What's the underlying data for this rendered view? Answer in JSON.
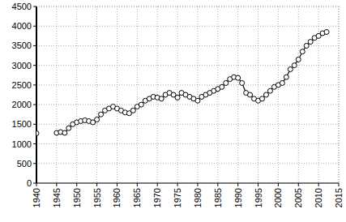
{
  "chart_data": {
    "type": "line",
    "color": "#000000",
    "marker": "circle",
    "grid": true,
    "x": [
      1940,
      1941,
      1942,
      1943,
      1944,
      1945,
      1946,
      1947,
      1948,
      1949,
      1950,
      1951,
      1952,
      1953,
      1954,
      1955,
      1956,
      1957,
      1958,
      1959,
      1960,
      1961,
      1962,
      1963,
      1964,
      1965,
      1966,
      1967,
      1968,
      1969,
      1970,
      1971,
      1972,
      1973,
      1974,
      1975,
      1976,
      1977,
      1978,
      1979,
      1980,
      1981,
      1982,
      1983,
      1984,
      1985,
      1986,
      1987,
      1988,
      1989,
      1990,
      1991,
      1992,
      1993,
      1994,
      1995,
      1996,
      1997,
      1998,
      1999,
      2000,
      2001,
      2002,
      2003,
      2004,
      2005,
      2006,
      2007,
      2008,
      2009,
      2010,
      2011,
      2012
    ],
    "values": [
      1270,
      null,
      null,
      null,
      null,
      1280,
      1300,
      1280,
      1400,
      1500,
      1550,
      1580,
      1600,
      1580,
      1550,
      1620,
      1750,
      1850,
      1900,
      1950,
      1900,
      1850,
      1800,
      1780,
      1850,
      1950,
      2000,
      2100,
      2150,
      2200,
      2180,
      2150,
      2250,
      2300,
      2250,
      2180,
      2300,
      2250,
      2200,
      2150,
      2100,
      2200,
      2250,
      2300,
      2350,
      2400,
      2450,
      2550,
      2650,
      2700,
      2680,
      2550,
      2300,
      2250,
      2150,
      2100,
      2150,
      2250,
      2350,
      2450,
      2500,
      2550,
      2700,
      2900,
      3000,
      3150,
      3350,
      3500,
      3600,
      3700,
      3750,
      3820,
      3850
    ],
    "xlim": [
      1940,
      2015
    ],
    "xticks": [
      1940,
      1945,
      1950,
      1955,
      1960,
      1965,
      1970,
      1975,
      1980,
      1985,
      1990,
      1995,
      2000,
      2005,
      2010,
      2015
    ],
    "ylim": [
      0,
      4500
    ],
    "yticks": [
      0,
      500,
      1000,
      1500,
      2000,
      2500,
      3000,
      3500,
      4000,
      4500
    ]
  }
}
